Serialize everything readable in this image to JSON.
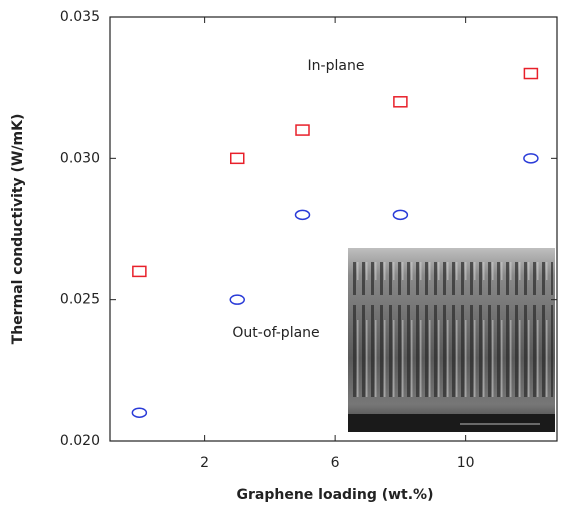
{
  "chart_data": {
    "type": "scatter",
    "x_label": "Graphene loading (wt.%)",
    "y_label": "Thermal conductivity (W/mK)",
    "xlim": [
      -0.9,
      12.8
    ],
    "xticks": [
      2,
      6,
      10
    ],
    "ylim": [
      0.02,
      0.035
    ],
    "yticks": [
      {
        "value": 0.02,
        "label": "0.020"
      },
      0.025,
      {
        "value": 0.03,
        "label": "0.030"
      },
      0.035
    ],
    "series": [
      {
        "color": "#e8202a",
        "marker": "square",
        "x": [
          0,
          3,
          5,
          8,
          12
        ],
        "values": [
          0.026,
          0.03,
          0.031,
          0.032,
          0.033
        ]
      },
      {
        "color": "#2a3bd8",
        "marker": "circle",
        "x": [
          0,
          3,
          5,
          8,
          12
        ],
        "values": [
          0.021,
          0.025,
          0.028,
          0.028,
          0.03
        ]
      }
    ],
    "annotations": [
      "In-plane",
      "Out-of-plane"
    ]
  }
}
